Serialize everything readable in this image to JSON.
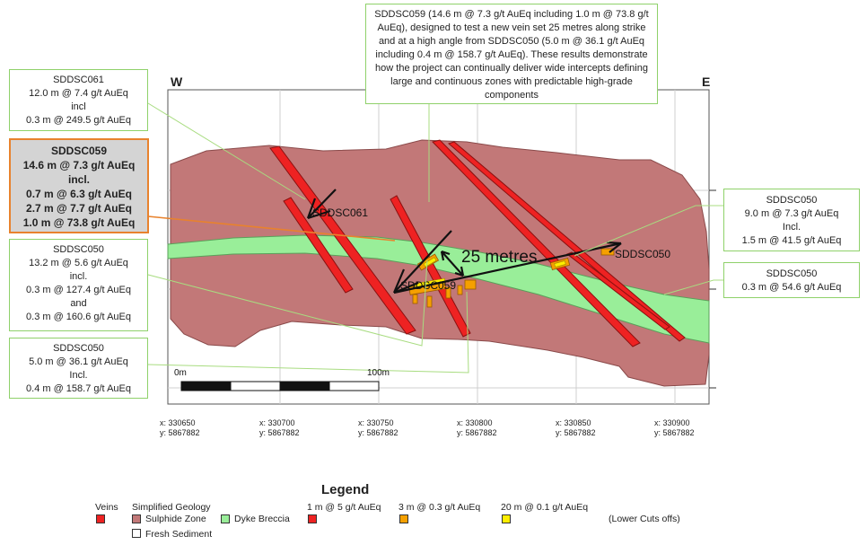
{
  "directions": {
    "west": "W",
    "east": "E"
  },
  "top_note": "SDDSC059 (14.6 m @ 7.3 g/t AuEq including 1.0 m @ 73.8 g/t AuEq), designed to test a new vein set 25 metres along strike and at a high angle from SDDSC050 (5.0 m @ 36.1 g/t AuEq including 0.4 m @ 158.7 g/t AuEq).  These results demonstrate how the project can continually deliver wide intercepts defining large and continuous zones with predictable high-grade components",
  "callouts_left": [
    {
      "id": "sddsc061",
      "featured": false,
      "lines": [
        "SDDSC061",
        "12.0 m @ 7.4 g/t AuEq",
        "incl",
        "0.3 m @ 249.5 g/t AuEq"
      ]
    },
    {
      "id": "sddsc059",
      "featured": true,
      "lines": [
        "SDDSC059",
        "14.6 m @ 7.3 g/t AuEq",
        "incl.",
        "0.7 m @ 6.3 g/t AuEq",
        "2.7 m @ 7.7 g/t AuEq",
        "1.0 m @ 73.8 g/t AuEq"
      ]
    },
    {
      "id": "sddsc050-a",
      "featured": false,
      "lines": [
        "SDDSC050",
        "13.2 m @ 5.6 g/t AuEq",
        "incl.",
        "0.3 m @ 127.4 g/t AuEq",
        "and",
        "0.3 m @ 160.6 g/t AuEq"
      ]
    },
    {
      "id": "sddsc050-b",
      "featured": false,
      "lines": [
        "SDDSC050",
        "5.0 m @ 36.1 g/t AuEq",
        "Incl.",
        "0.4 m @ 158.7 g/t AuEq"
      ]
    }
  ],
  "callouts_right": [
    {
      "id": "sddsc050-c",
      "lines": [
        "SDDSC050",
        "9.0 m @ 7.3 g/t AuEq",
        "Incl.",
        "1.5 m @ 41.5 g/t AuEq"
      ]
    },
    {
      "id": "sddsc050-d",
      "lines": [
        "SDDSC050",
        "0.3 m @ 54.6 g/t AuEq"
      ]
    }
  ],
  "hole_labels": {
    "sddsc061": "SDDSC061",
    "sddsc059": "SDDSC059",
    "sddsc050": "SDDSC050"
  },
  "distance_label": "25 metres",
  "scale_bar": {
    "start_label": "0m",
    "end_label": "100m"
  },
  "coordinates": [
    {
      "x": "x: 330650",
      "y": "y: 5867882"
    },
    {
      "x": "x: 330700",
      "y": "y: 5867882"
    },
    {
      "x": "x: 330750",
      "y": "y: 5867882"
    },
    {
      "x": "x: 330800",
      "y": "y: 5867882"
    },
    {
      "x": "x: 330850",
      "y": "y: 5867882"
    },
    {
      "x": "x: 330900",
      "y": "y: 5867882"
    }
  ],
  "legend": {
    "title": "Legend",
    "veins": "Veins",
    "simplified_geology": "Simplified Geology",
    "sulphide_zone": "Sulphide Zone",
    "dyke_breccia": "Dyke Breccia",
    "fresh_sediment": "Fresh Sediment",
    "cut_1": "1 m @ 5 g/t AuEq",
    "cut_2": "3 m @ 0.3 g/t AuEq",
    "cut_3": "20 m @ 0.1 g/t AuEq",
    "lower_cuts": "(Lower Cuts offs)"
  },
  "colors": {
    "sulphide": "#c27878",
    "breccia": "#99ee99",
    "vein": "#ee2222",
    "cut_orange": "#f5a000",
    "cut_yellow": "#ffee00",
    "leader_green": "#a8dc80",
    "featured_border": "#e8822d"
  }
}
